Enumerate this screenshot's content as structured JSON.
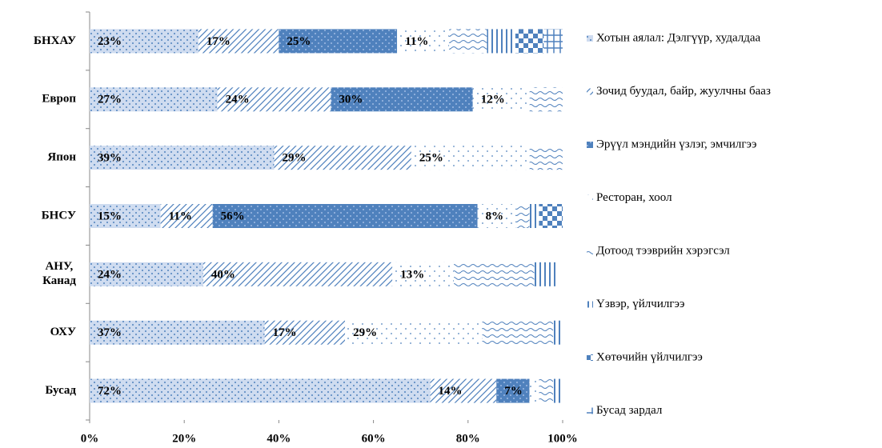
{
  "chart_data": {
    "type": "stacked-bar-horizontal",
    "categories": [
      "БНХАУ",
      "Европ",
      "Япон",
      "БНСУ",
      "АНУ, Канад",
      "ОХУ",
      "Бусад"
    ],
    "series": [
      {
        "name": "Хотын аялал: Дэлгүүр, худалдаа",
        "color": "#4f81bd",
        "values": [
          23,
          27,
          39,
          15,
          24,
          37,
          72
        ],
        "value_labels": [
          "23%",
          "27%",
          "39%",
          "15%",
          "24%",
          "37%",
          "72%"
        ]
      },
      {
        "name": "Зочид буудал, байр, жуулчны бааз",
        "color": "#4f81bd",
        "values": [
          17,
          24,
          29,
          11,
          40,
          17,
          14
        ],
        "value_labels": [
          "17%",
          "24%",
          "29%",
          "11%",
          "40%",
          "17%",
          "14%"
        ]
      },
      {
        "name": "Эрүүл мэндийн үзлэг, эмчилгээ",
        "color": "#4f81bd",
        "values": [
          25,
          30,
          null,
          56,
          null,
          null,
          7
        ],
        "value_labels": [
          "25%",
          "30%",
          null,
          "56%",
          null,
          null,
          "7%"
        ]
      },
      {
        "name": "Ресторан, хоол",
        "color": "#4f81bd",
        "values": [
          11,
          12,
          25,
          8,
          13,
          29,
          2
        ],
        "value_labels": [
          "11%",
          "12%",
          "25%",
          "8%",
          "13%",
          "29%",
          null
        ]
      },
      {
        "name": "Дотоод тээврийн хэрэгсэл",
        "color": "#4f81bd",
        "values": [
          8,
          7,
          7,
          3,
          17,
          15,
          3
        ]
      },
      {
        "name": "Үзвэр, үйлчилгээ",
        "color": "#4f81bd",
        "values": [
          6,
          null,
          null,
          2,
          5,
          2,
          2
        ]
      },
      {
        "name": "Хөтөчийн үйлчилгээ",
        "color": "#4f81bd",
        "values": [
          6,
          null,
          null,
          5,
          null,
          null,
          null
        ]
      },
      {
        "name": "Бусад зардал",
        "color": "#4f81bd",
        "values": [
          4,
          null,
          null,
          null,
          null,
          null,
          null
        ]
      }
    ],
    "xlim": [
      0,
      100
    ],
    "xticks": [
      {
        "value": 0,
        "label": "0%"
      },
      {
        "value": 20,
        "label": "20%"
      },
      {
        "value": 40,
        "label": "40%"
      },
      {
        "value": 60,
        "label": "60%"
      },
      {
        "value": 80,
        "label": "80%"
      },
      {
        "value": 100,
        "label": "100%"
      }
    ],
    "legend": "right"
  }
}
